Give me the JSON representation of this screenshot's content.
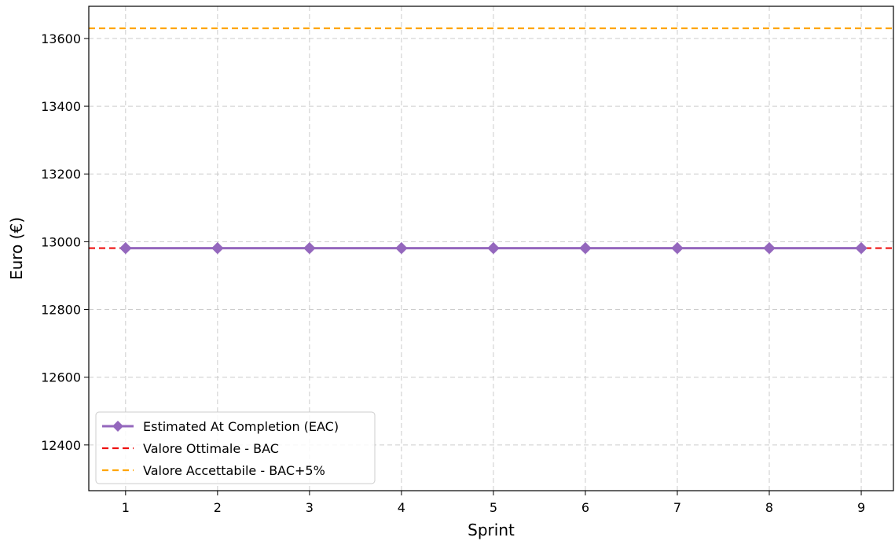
{
  "chart_data": {
    "type": "line",
    "xlabel": "Sprint",
    "ylabel": "Euro (€)",
    "x": [
      1,
      2,
      3,
      4,
      5,
      6,
      7,
      8,
      9
    ],
    "x_ticks": [
      "1",
      "2",
      "3",
      "4",
      "5",
      "6",
      "7",
      "8",
      "9"
    ],
    "xlim": [
      0.6,
      9.35
    ],
    "ylim": [
      12265,
      13695
    ],
    "y_ticks": [
      12400,
      12600,
      12800,
      13000,
      13200,
      13400,
      13600
    ],
    "grid": true,
    "legend_position": "lower-left",
    "series": [
      {
        "name": "Estimated At Completion (EAC)",
        "style": "line-diamond-markers",
        "color": "#9467bd",
        "values": [
          12981,
          12981,
          12981,
          12981,
          12981,
          12981,
          12981,
          12981,
          12981
        ]
      }
    ],
    "reference_lines": [
      {
        "name": "Valore Ottimale - BAC",
        "value": 12981,
        "color": "#ee1111",
        "style": "dashed"
      },
      {
        "name": "Valore Accettabile - BAC+5%",
        "value": 13630,
        "color": "#ffa500",
        "style": "dashed"
      }
    ]
  }
}
